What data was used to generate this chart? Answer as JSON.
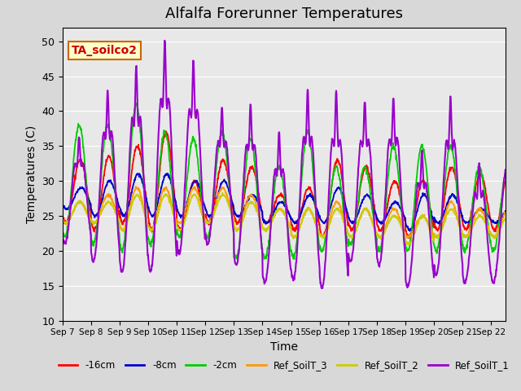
{
  "title": "Alfalfa Forerunner Temperatures",
  "xlabel": "Time",
  "ylabel": "Temperatures (C)",
  "ylim": [
    10,
    52
  ],
  "yticks": [
    10,
    15,
    20,
    25,
    30,
    35,
    40,
    45,
    50
  ],
  "legend_labels": [
    "-16cm",
    "-8cm",
    "-2cm",
    "Ref_SoilT_3",
    "Ref_SoilT_2",
    "Ref_SoilT_1"
  ],
  "legend_colors": [
    "#ff0000",
    "#0000cd",
    "#00cc00",
    "#ff9900",
    "#cccc00",
    "#9900cc"
  ],
  "annotation_text": "TA_soilco2",
  "annotation_facecolor": "#ffffcc",
  "annotation_edgecolor": "#cc6600",
  "annotation_textcolor": "#cc0000",
  "background_color": "#e8e8e8",
  "x_tick_labels": [
    "Sep 7",
    "Sep 8",
    "Sep 9",
    "Sep 10",
    "Sep 11",
    "Sep 12",
    "Sep 13",
    "Sep 14",
    "Sep 15",
    "Sep 16",
    "Sep 17",
    "Sep 18",
    "Sep 19",
    "Sep 20",
    "Sep 21",
    "Sep 22"
  ],
  "n_days": 15.5,
  "points_per_day": 96,
  "fig_width": 6.4,
  "fig_height": 4.8,
  "fig_dpi": 100
}
